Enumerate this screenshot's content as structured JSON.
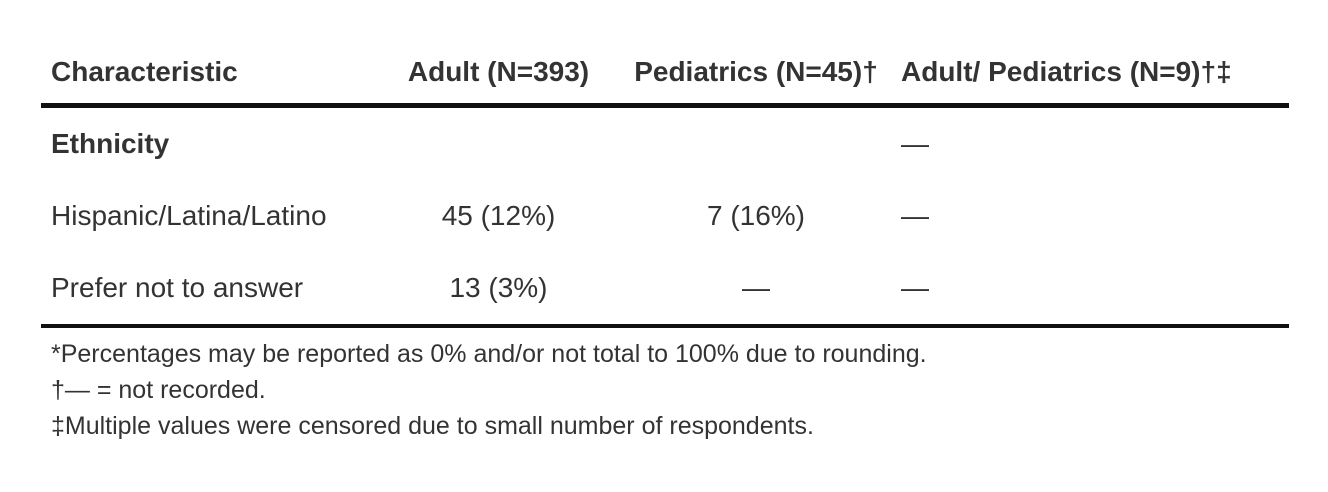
{
  "table": {
    "headers": [
      "Characteristic",
      "Adult (N=393)",
      "Pediatrics (N=45)†",
      "Adult/ Pediatrics (N=9)†‡"
    ],
    "rows": [
      {
        "label": "Ethnicity",
        "adult": "",
        "pediatrics": "",
        "adult_pediatrics": "—"
      },
      {
        "label": "Hispanic/Latina/Latino",
        "adult": "45 (12%)",
        "pediatrics": "7 (16%)",
        "adult_pediatrics": "—"
      },
      {
        "label": "Prefer not to answer",
        "adult": "13 (3%)",
        "pediatrics": "—",
        "adult_pediatrics": "—"
      }
    ]
  },
  "footnotes": [
    "*Percentages may be reported as 0% and/or not total to 100% due to rounding.",
    "†— = not recorded.",
    "‡Multiple values were censored due to small number of respondents."
  ]
}
